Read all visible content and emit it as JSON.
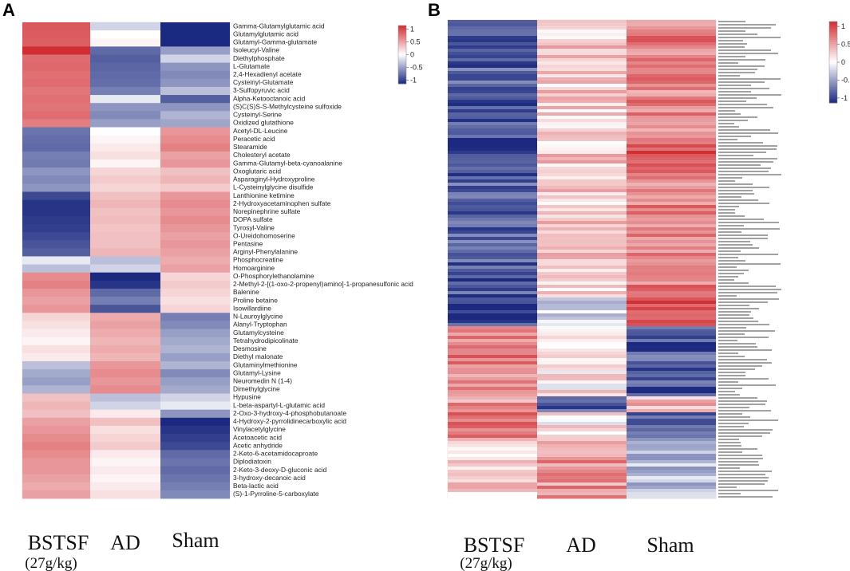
{
  "colors": {
    "low": "#1b2a80",
    "mid": "#ffffff",
    "high": "#d12d33"
  },
  "colorbar_ticks": [
    "1",
    "0.5",
    "0",
    "-0.5",
    "-1"
  ],
  "groups": [
    {
      "label": "BSTSF",
      "sub": "(27g/kg)"
    },
    {
      "label": "AD",
      "sub": ""
    },
    {
      "label": "Sham",
      "sub": ""
    }
  ],
  "chart_data": [
    {
      "type": "heatmap",
      "panel": "A",
      "title": "",
      "columns": [
        "BSTSF (27g/kg)",
        "AD",
        "Sham"
      ],
      "color_range": [
        -1,
        1
      ],
      "rows": [
        "Gamma-Glutamylglutamic acid",
        "Glutamylglutamic acid",
        "Glutamyl-Gamma-glutamate",
        "Isoleucyl-Valine",
        "Diethylphosphate",
        "L-Glutamate",
        "2,4-Hexadienyl acetate",
        "Cysteinyl-Glutamate",
        "3-Sulfopyruvic acid",
        "Alpha-Ketooctanoic acid",
        "(S)C(S)S-S-Methylcysteine sulfoxide",
        "Cysteinyl-Serine",
        "Oxidized glutathione",
        "Acetyl-DL-Leucine",
        "Peracetic acid",
        "Stearamide",
        "Cholesteryl acetate",
        "Gamma-Glutamyl-beta-cyanoalanine",
        "Oxoglutaric acid",
        "Asparaginyl-Hydroxyproline",
        "L-Cysteinylglycine disulfide",
        "Lanthionine ketimine",
        "2-Hydroxyacetaminophen sulfate",
        "Norepinephrine sulfate",
        "DOPA sulfate",
        "Tyrosyl-Valine",
        "O-Ureidohomoserine",
        "Pentasine",
        "Arginyl-Phenylalanine",
        "Phosphocreatine",
        "Homoarginine",
        "O-Phosphorylethanolamine",
        "2-Methyl-2-[(1-oxo-2-propenyl)amino]-1-propanesulfonic acid",
        "Balenine",
        "Proline betaine",
        "Isowillardiine",
        "N-Lauroylglycine",
        "Alanyl-Tryptophan",
        "Glutamylcysteine",
        "Tetrahydrodipicolinate",
        "Desmosine",
        "Diethyl malonate",
        "Glutaminylmethionine",
        "Glutamyl-Lysine",
        "Neuromedin N (1-4)",
        "Dimethylglycine",
        "Hypusine",
        "L-beta-aspartyl-L-glutamic acid",
        "2-Oxo-3-hydroxy-4-phosphobutanoate",
        "4-Hydroxy-2-pyrrolidinecarboxylic acid",
        "Vinylacetylglycine",
        "Acetoacetic acid",
        "Acetic anhydride",
        "2-Keto-6-acetamidocaproate",
        "Diplodiatoxin",
        "2-Keto-3-deoxy-D-gluconic acid",
        "3-hydroxy-decanoic acid",
        "Beta-lactic acid",
        "(S)-1-Pyrroline-5-carboxylate"
      ],
      "values": [
        [
          0.8,
          -0.2,
          -1.0
        ],
        [
          0.78,
          0.0,
          -1.0
        ],
        [
          0.76,
          0.05,
          -1.0
        ],
        [
          1.0,
          -0.7,
          -0.45
        ],
        [
          0.7,
          -0.75,
          -0.2
        ],
        [
          0.72,
          -0.72,
          -0.5
        ],
        [
          0.68,
          -0.7,
          -0.55
        ],
        [
          0.7,
          -0.68,
          -0.5
        ],
        [
          0.65,
          -0.6,
          -0.3
        ],
        [
          0.68,
          -0.1,
          -0.75
        ],
        [
          0.66,
          -0.5,
          -0.5
        ],
        [
          0.7,
          -0.55,
          -0.35
        ],
        [
          0.62,
          -0.45,
          -0.42
        ],
        [
          -0.65,
          0.0,
          0.5
        ],
        [
          -0.68,
          0.05,
          0.55
        ],
        [
          -0.7,
          0.1,
          0.6
        ],
        [
          -0.6,
          0.15,
          0.45
        ],
        [
          -0.62,
          0.05,
          0.5
        ],
        [
          -0.5,
          0.2,
          0.3
        ],
        [
          -0.55,
          0.25,
          0.35
        ],
        [
          -0.5,
          0.2,
          0.25
        ],
        [
          -0.85,
          0.3,
          0.5
        ],
        [
          -0.95,
          0.35,
          0.55
        ],
        [
          -0.95,
          0.3,
          0.5
        ],
        [
          -0.92,
          0.32,
          0.55
        ],
        [
          -0.9,
          0.28,
          0.5
        ],
        [
          -0.85,
          0.3,
          0.45
        ],
        [
          -0.8,
          0.3,
          0.5
        ],
        [
          -0.75,
          0.35,
          0.45
        ],
        [
          -0.1,
          -0.3,
          0.4
        ],
        [
          -0.3,
          -0.2,
          0.45
        ],
        [
          0.55,
          -1.0,
          0.2
        ],
        [
          0.6,
          -0.95,
          0.25
        ],
        [
          0.5,
          -0.7,
          0.2
        ],
        [
          0.45,
          -0.6,
          0.15
        ],
        [
          0.5,
          -0.8,
          0.2
        ],
        [
          0.2,
          0.4,
          -0.6
        ],
        [
          0.15,
          0.45,
          -0.55
        ],
        [
          0.1,
          0.4,
          -0.45
        ],
        [
          0.05,
          0.35,
          -0.4
        ],
        [
          0.15,
          0.4,
          -0.35
        ],
        [
          0.1,
          0.35,
          -0.45
        ],
        [
          -0.3,
          0.5,
          -0.35
        ],
        [
          -0.4,
          0.55,
          -0.55
        ],
        [
          -0.45,
          0.5,
          -0.45
        ],
        [
          -0.35,
          0.55,
          -0.4
        ],
        [
          0.3,
          -0.3,
          -0.2
        ],
        [
          0.35,
          -0.2,
          -0.1
        ],
        [
          0.3,
          0.1,
          -0.5
        ],
        [
          0.45,
          0.3,
          -1.0
        ],
        [
          0.5,
          0.15,
          -0.95
        ],
        [
          0.55,
          0.2,
          -0.9
        ],
        [
          0.6,
          0.25,
          -0.85
        ],
        [
          0.55,
          0.1,
          -0.7
        ],
        [
          0.5,
          0.05,
          -0.65
        ],
        [
          0.5,
          0.1,
          -0.7
        ],
        [
          0.45,
          0.05,
          -0.65
        ],
        [
          0.4,
          0.1,
          -0.6
        ],
        [
          0.45,
          0.15,
          -0.55
        ]
      ]
    },
    {
      "type": "heatmap",
      "panel": "B",
      "title": "",
      "columns": [
        "BSTSF (27g/kg)",
        "AD",
        "Sham"
      ],
      "color_range": [
        -1,
        1
      ],
      "rows": [],
      "values": []
    }
  ]
}
